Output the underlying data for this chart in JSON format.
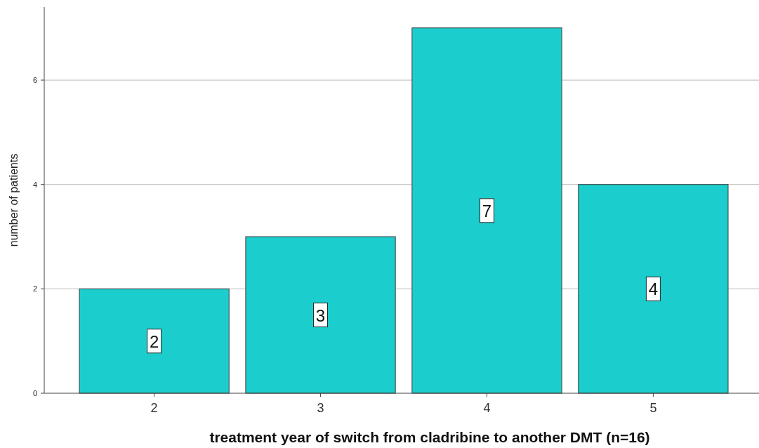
{
  "chart_data": {
    "type": "bar",
    "xlabel": "treatment year of switch from cladribine to another DMT (n=16)",
    "ylabel": "number of patients",
    "categories": [
      "2",
      "3",
      "4",
      "5"
    ],
    "values": [
      2,
      3,
      7,
      4
    ],
    "color": "#1ccdcd",
    "ylim": [
      0,
      7.4
    ],
    "yticks": [
      0,
      2,
      4,
      6
    ],
    "grid": "y",
    "data_labels": true
  }
}
